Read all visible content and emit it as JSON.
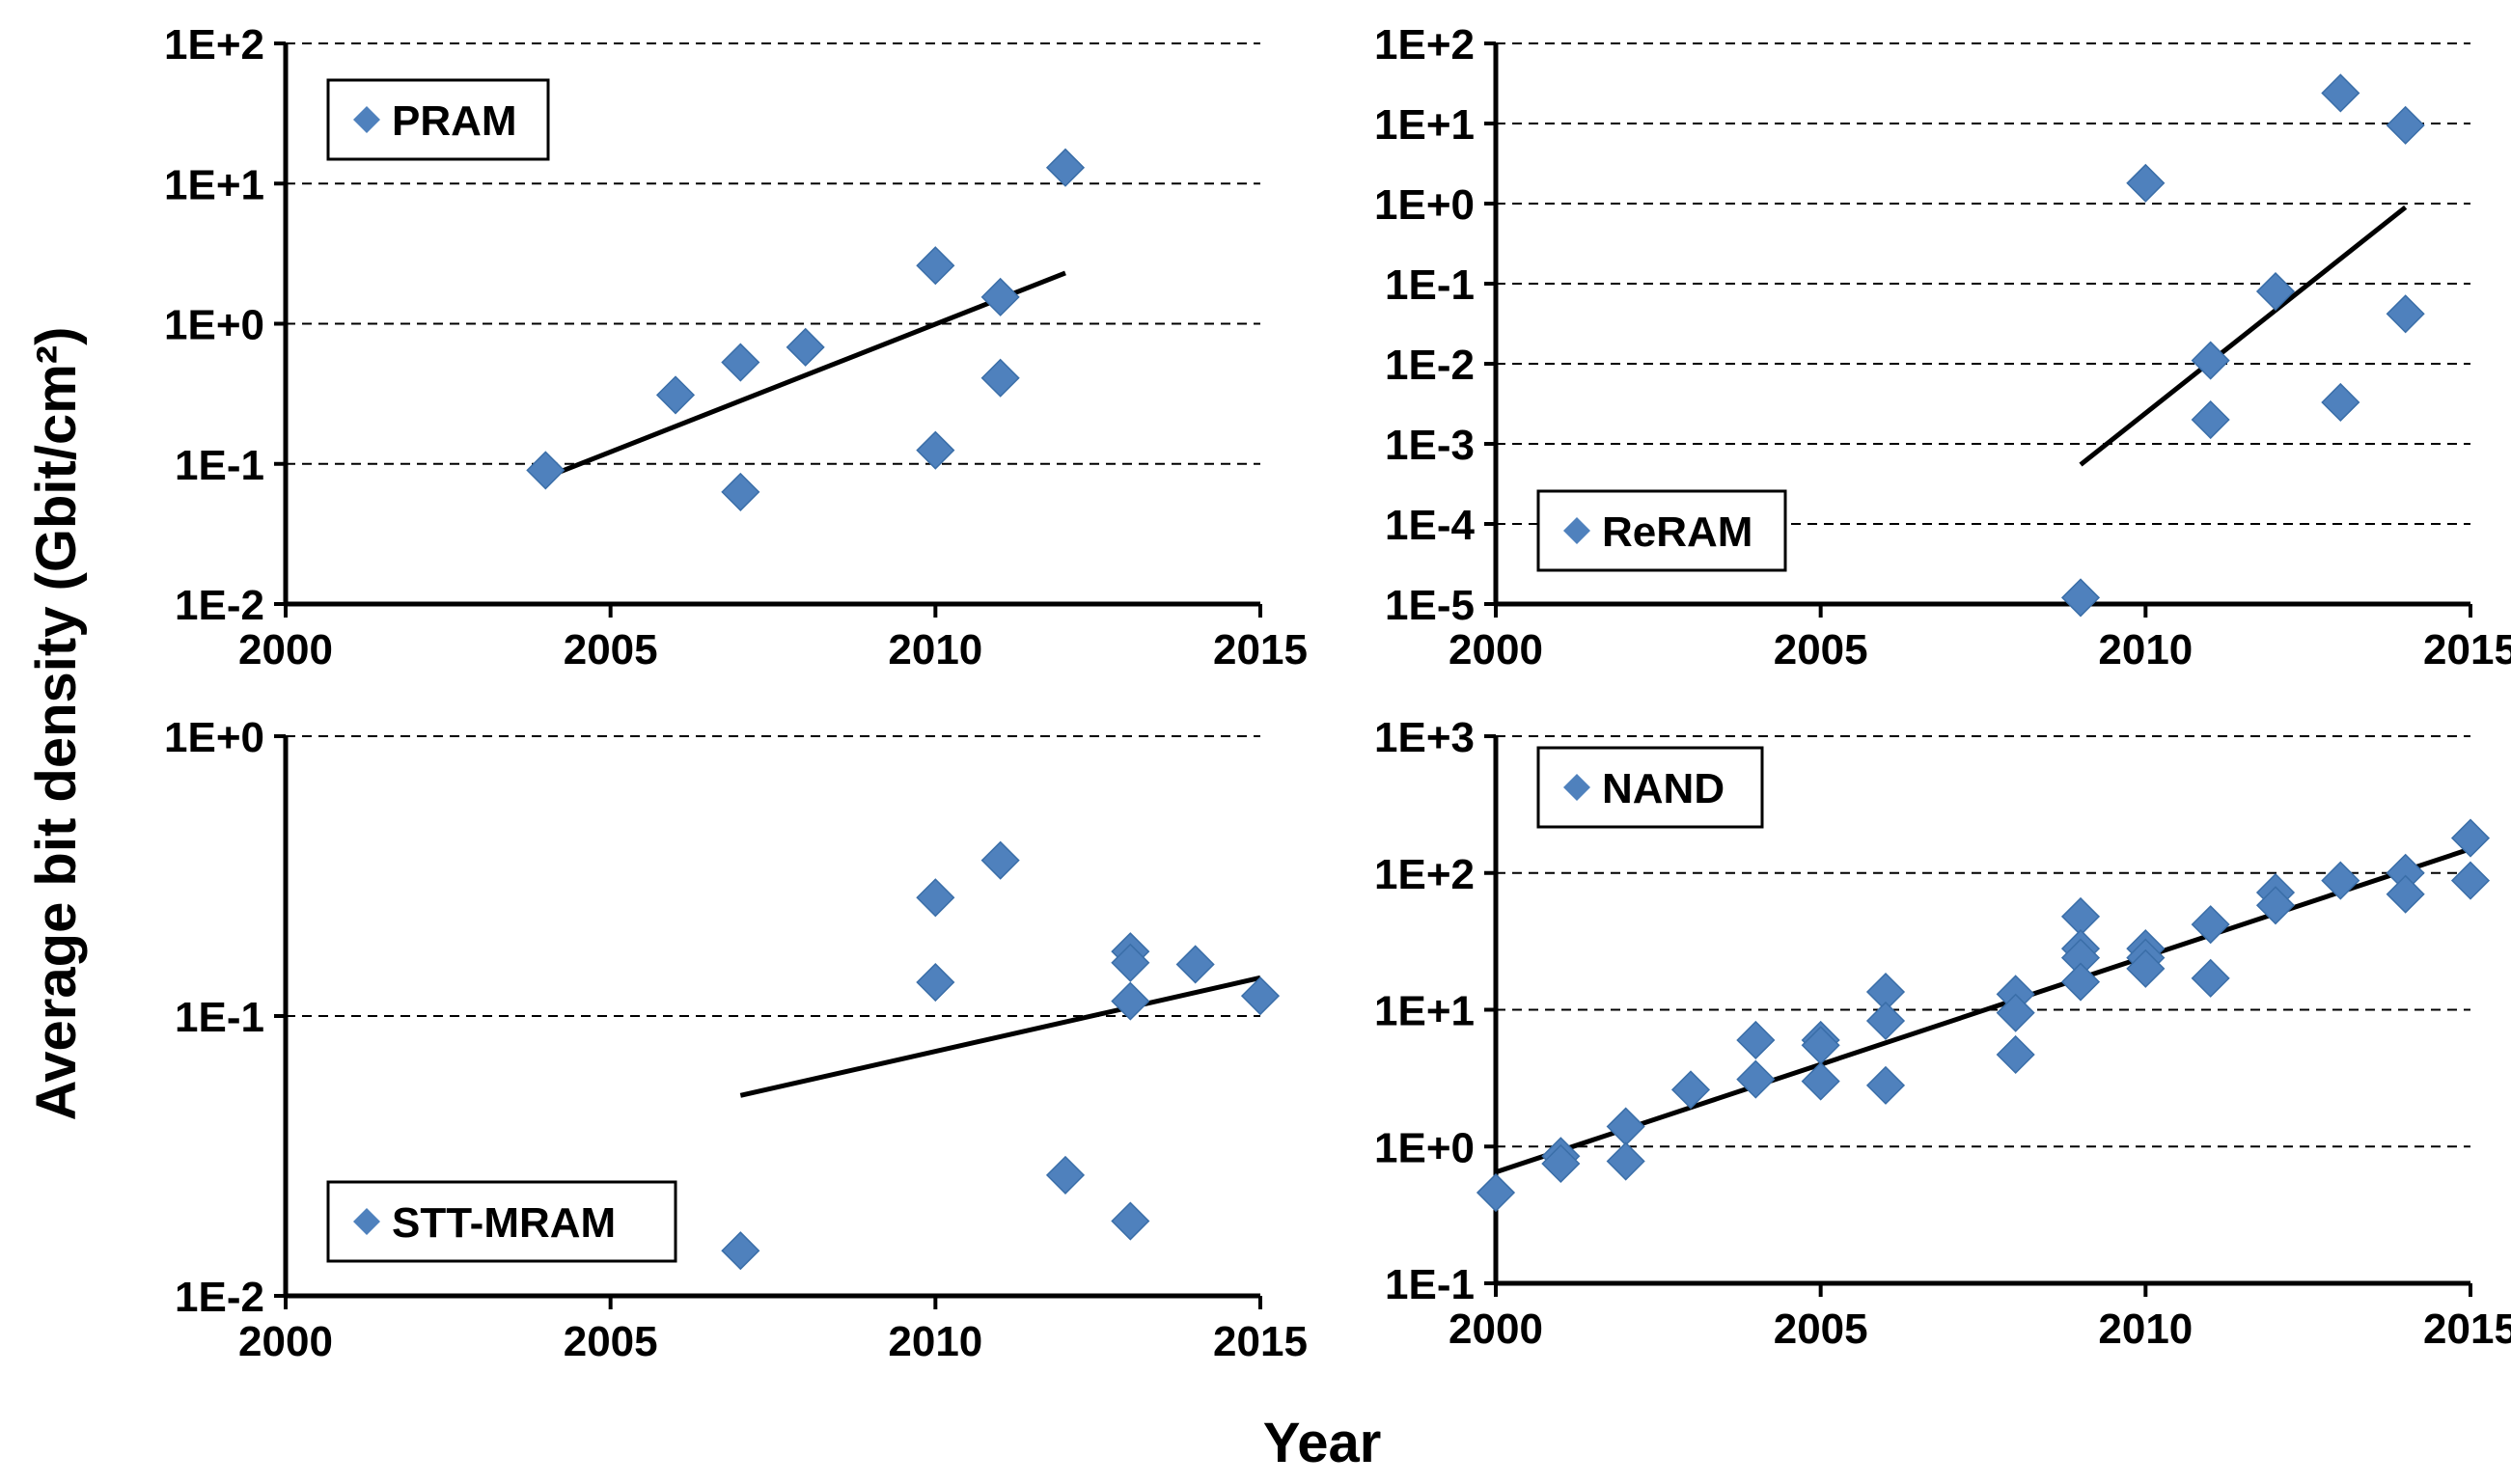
{
  "figure": {
    "ylabel": "Average bit density (Gbit/cm²)",
    "xlabel": "Year"
  },
  "chart_data": [
    {
      "type": "scatter",
      "name": "PRAM",
      "legend": "PRAM",
      "legend_position": "top-left",
      "y_scale": "log",
      "xlim": [
        2000,
        2015
      ],
      "ylim": [
        0.01,
        100
      ],
      "x_ticks": [
        "2000",
        "2005",
        "2010",
        "2015"
      ],
      "y_ticks": [
        "1E-2",
        "1E-1",
        "1E+0",
        "1E+1",
        "1E+2"
      ],
      "grid": "horizontal dashed",
      "marker_color": "#4F81BD",
      "points": [
        {
          "x": 2004,
          "y": 0.09
        },
        {
          "x": 2006,
          "y": 0.31
        },
        {
          "x": 2007,
          "y": 0.53
        },
        {
          "x": 2007,
          "y": 0.063
        },
        {
          "x": 2008,
          "y": 0.68
        },
        {
          "x": 2010,
          "y": 2.6
        },
        {
          "x": 2010,
          "y": 0.125
        },
        {
          "x": 2011,
          "y": 1.55
        },
        {
          "x": 2011,
          "y": 0.41
        },
        {
          "x": 2012,
          "y": 13
        }
      ],
      "trend": [
        {
          "x": 2004,
          "y": 0.08
        },
        {
          "x": 2012,
          "y": 2.3
        }
      ]
    },
    {
      "type": "scatter",
      "name": "ReRAM",
      "legend": "ReRAM",
      "legend_position": "bottom-left",
      "y_scale": "log",
      "xlim": [
        2000,
        2015
      ],
      "ylim": [
        1e-05,
        100
      ],
      "x_ticks": [
        "2000",
        "2005",
        "2010",
        "2015"
      ],
      "y_ticks": [
        "1E-5",
        "1E-4",
        "1E-3",
        "1E-2",
        "1E-1",
        "1E+0",
        "1E+1",
        "1E+2"
      ],
      "grid": "horizontal dashed",
      "marker_color": "#4F81BD",
      "points": [
        {
          "x": 2009,
          "y": 1.2e-05
        },
        {
          "x": 2010,
          "y": 1.8
        },
        {
          "x": 2011,
          "y": 0.011
        },
        {
          "x": 2011,
          "y": 0.002
        },
        {
          "x": 2012,
          "y": 0.08
        },
        {
          "x": 2013,
          "y": 24
        },
        {
          "x": 2013,
          "y": 0.0033
        },
        {
          "x": 2014,
          "y": 9.5
        },
        {
          "x": 2014,
          "y": 0.042
        }
      ],
      "trend": [
        {
          "x": 2009,
          "y": 0.00055
        },
        {
          "x": 2014,
          "y": 0.9
        }
      ]
    },
    {
      "type": "scatter",
      "name": "STT-MRAM",
      "legend": "STT-MRAM",
      "legend_position": "bottom-left",
      "y_scale": "log",
      "xlim": [
        2000,
        2015
      ],
      "ylim": [
        0.01,
        1
      ],
      "x_ticks": [
        "2000",
        "2005",
        "2010",
        "2015"
      ],
      "y_ticks": [
        "1E-2",
        "1E-1",
        "1E+0"
      ],
      "grid": "horizontal dashed",
      "marker_color": "#4F81BD",
      "points": [
        {
          "x": 2007,
          "y": 0.0145
        },
        {
          "x": 2010,
          "y": 0.265
        },
        {
          "x": 2010,
          "y": 0.132
        },
        {
          "x": 2011,
          "y": 0.36
        },
        {
          "x": 2012,
          "y": 0.027
        },
        {
          "x": 2013,
          "y": 0.17
        },
        {
          "x": 2013,
          "y": 0.155
        },
        {
          "x": 2013,
          "y": 0.113
        },
        {
          "x": 2013,
          "y": 0.0185
        },
        {
          "x": 2014,
          "y": 0.153
        },
        {
          "x": 2015,
          "y": 0.118
        }
      ],
      "trend": [
        {
          "x": 2007,
          "y": 0.052
        },
        {
          "x": 2015,
          "y": 0.137
        }
      ]
    },
    {
      "type": "scatter",
      "name": "NAND",
      "legend": "NAND",
      "legend_position": "top-left",
      "y_scale": "log",
      "xlim": [
        2000,
        2015
      ],
      "ylim": [
        0.1,
        1000
      ],
      "x_ticks": [
        "2000",
        "2005",
        "2010",
        "2015"
      ],
      "y_ticks": [
        "1E-1",
        "1E+0",
        "1E+1",
        "1E+2",
        "1E+3"
      ],
      "grid": "horizontal dashed",
      "marker_color": "#4F81BD",
      "points": [
        {
          "x": 2000,
          "y": 0.46
        },
        {
          "x": 2001,
          "y": 0.85
        },
        {
          "x": 2001,
          "y": 0.75
        },
        {
          "x": 2002,
          "y": 1.4
        },
        {
          "x": 2002,
          "y": 0.78
        },
        {
          "x": 2003,
          "y": 2.6
        },
        {
          "x": 2004,
          "y": 6.0
        },
        {
          "x": 2004,
          "y": 3.1
        },
        {
          "x": 2005,
          "y": 6.0
        },
        {
          "x": 2005,
          "y": 5.5
        },
        {
          "x": 2005,
          "y": 3.0
        },
        {
          "x": 2006,
          "y": 13.5
        },
        {
          "x": 2006,
          "y": 8.3
        },
        {
          "x": 2006,
          "y": 2.8
        },
        {
          "x": 2008,
          "y": 13
        },
        {
          "x": 2008,
          "y": 9.5
        },
        {
          "x": 2008,
          "y": 4.7
        },
        {
          "x": 2009,
          "y": 48
        },
        {
          "x": 2009,
          "y": 28
        },
        {
          "x": 2009,
          "y": 24
        },
        {
          "x": 2009,
          "y": 16
        },
        {
          "x": 2010,
          "y": 28
        },
        {
          "x": 2010,
          "y": 24
        },
        {
          "x": 2010,
          "y": 20
        },
        {
          "x": 2011,
          "y": 42
        },
        {
          "x": 2011,
          "y": 17
        },
        {
          "x": 2012,
          "y": 72
        },
        {
          "x": 2012,
          "y": 58
        },
        {
          "x": 2013,
          "y": 88
        },
        {
          "x": 2014,
          "y": 100
        },
        {
          "x": 2014,
          "y": 70
        },
        {
          "x": 2015,
          "y": 180
        },
        {
          "x": 2015,
          "y": 88
        }
      ],
      "trend": [
        {
          "x": 2000,
          "y": 0.65
        },
        {
          "x": 2015,
          "y": 150
        }
      ]
    }
  ]
}
